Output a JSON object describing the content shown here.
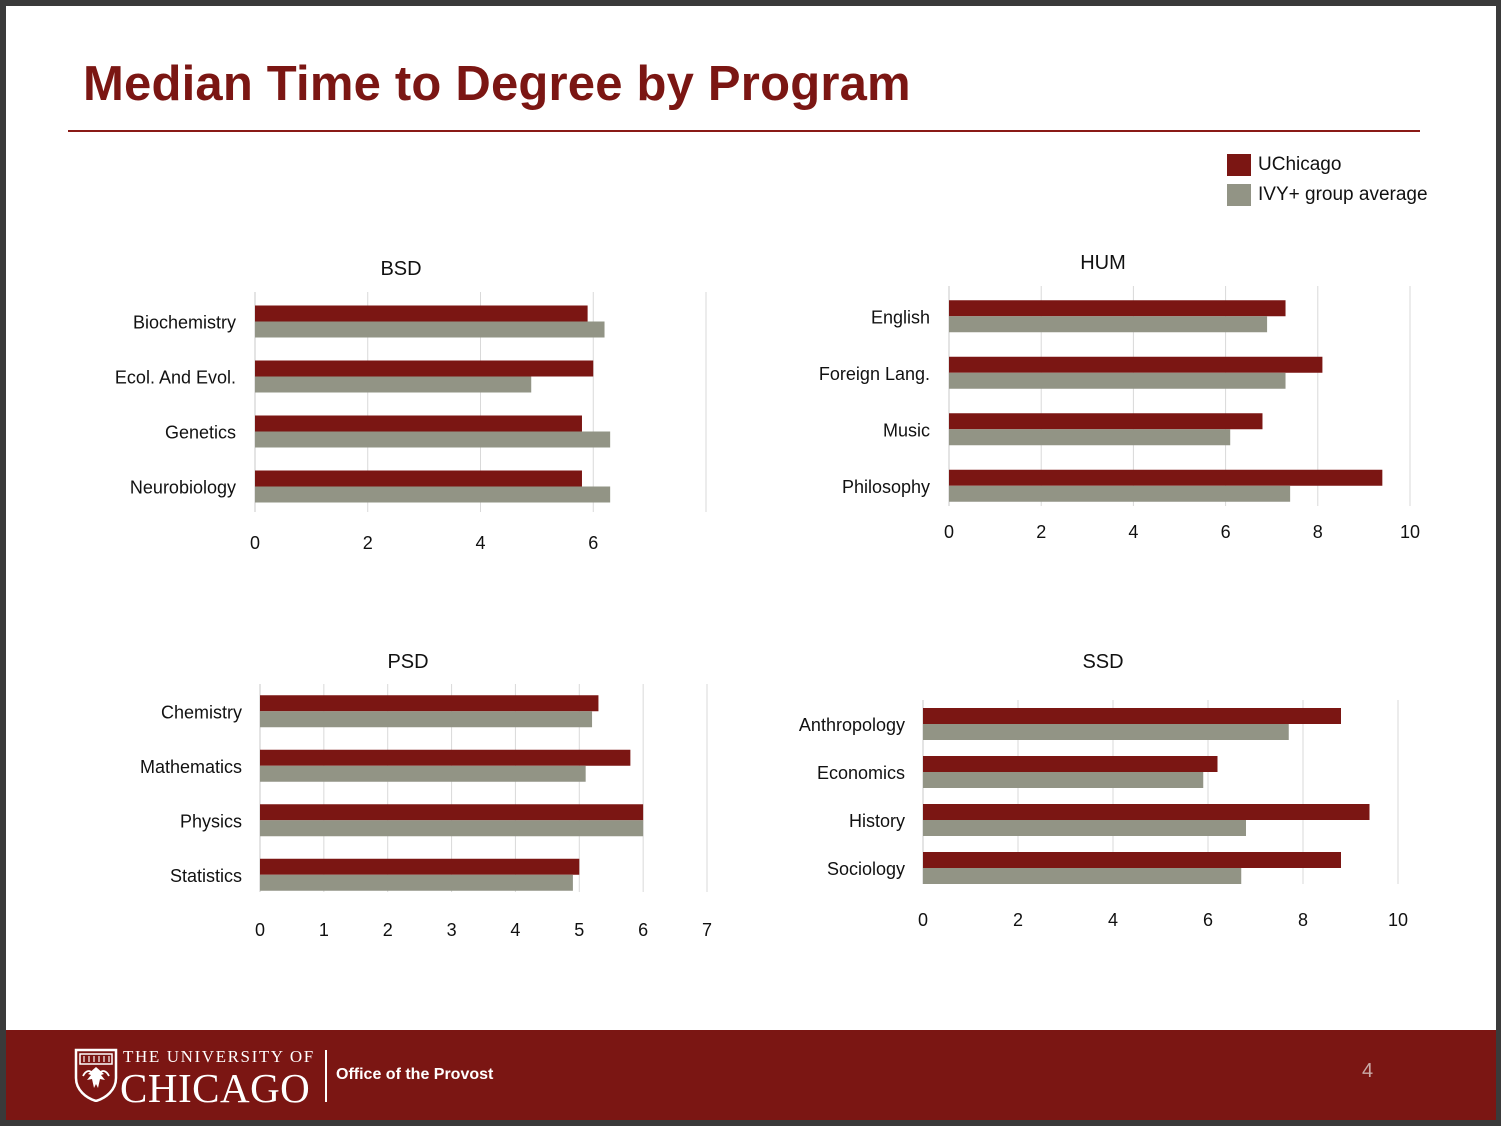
{
  "title": "Median Time to Degree by Program",
  "legend": [
    {
      "label": "UChicago",
      "color": "#7b1613"
    },
    {
      "label": "IVY+ group average",
      "color": "#929485"
    }
  ],
  "chart_data": [
    {
      "type": "bar",
      "orientation": "horizontal",
      "title": "BSD",
      "categories": [
        "Biochemistry",
        "Ecol. And Evol.",
        "Genetics",
        "Neurobiology"
      ],
      "series": [
        {
          "name": "UChicago",
          "values": [
            5.9,
            6.0,
            5.8,
            5.8
          ]
        },
        {
          "name": "IVY+ group average",
          "values": [
            6.2,
            4.9,
            6.3,
            6.3
          ]
        }
      ],
      "xlim": [
        0,
        8
      ],
      "xticks": [
        "0",
        "2",
        "4",
        "6"
      ],
      "grid": true
    },
    {
      "type": "bar",
      "orientation": "horizontal",
      "title": "HUM",
      "categories": [
        "English",
        "Foreign Lang.",
        "Music",
        "Philosophy"
      ],
      "series": [
        {
          "name": "UChicago",
          "values": [
            7.3,
            8.1,
            6.8,
            9.4
          ]
        },
        {
          "name": "IVY+ group average",
          "values": [
            6.9,
            7.3,
            6.1,
            7.4
          ]
        }
      ],
      "xlim": [
        0,
        10
      ],
      "xticks": [
        "0",
        "2",
        "4",
        "6",
        "8",
        "10"
      ],
      "grid": true
    },
    {
      "type": "bar",
      "orientation": "horizontal",
      "title": "PSD",
      "categories": [
        "Chemistry",
        "Mathematics",
        "Physics",
        "Statistics"
      ],
      "series": [
        {
          "name": "UChicago",
          "values": [
            5.3,
            5.8,
            6.0,
            5.0
          ]
        },
        {
          "name": "IVY+ group average",
          "values": [
            5.2,
            5.1,
            6.0,
            4.9
          ]
        }
      ],
      "xlim": [
        0,
        7
      ],
      "xticks": [
        "0",
        "1",
        "2",
        "3",
        "4",
        "5",
        "6",
        "7"
      ],
      "grid": true
    },
    {
      "type": "bar",
      "orientation": "horizontal",
      "title": "SSD",
      "categories": [
        "Anthropology",
        "Economics",
        "History",
        "Sociology"
      ],
      "series": [
        {
          "name": "UChicago",
          "values": [
            8.8,
            6.2,
            9.4,
            8.8
          ]
        },
        {
          "name": "IVY+ group average",
          "values": [
            7.7,
            5.9,
            6.8,
            6.7
          ]
        }
      ],
      "xlim": [
        0,
        10
      ],
      "xticks": [
        "0",
        "2",
        "4",
        "6",
        "8",
        "10"
      ],
      "grid": true
    }
  ],
  "footer": {
    "university_line1": "THE UNIVERSITY OF",
    "university_line2": "CHICAGO",
    "office": "Office of the Provost",
    "page_number": "4",
    "logo": "university-crest-icon",
    "background_color": "#7b1613"
  }
}
